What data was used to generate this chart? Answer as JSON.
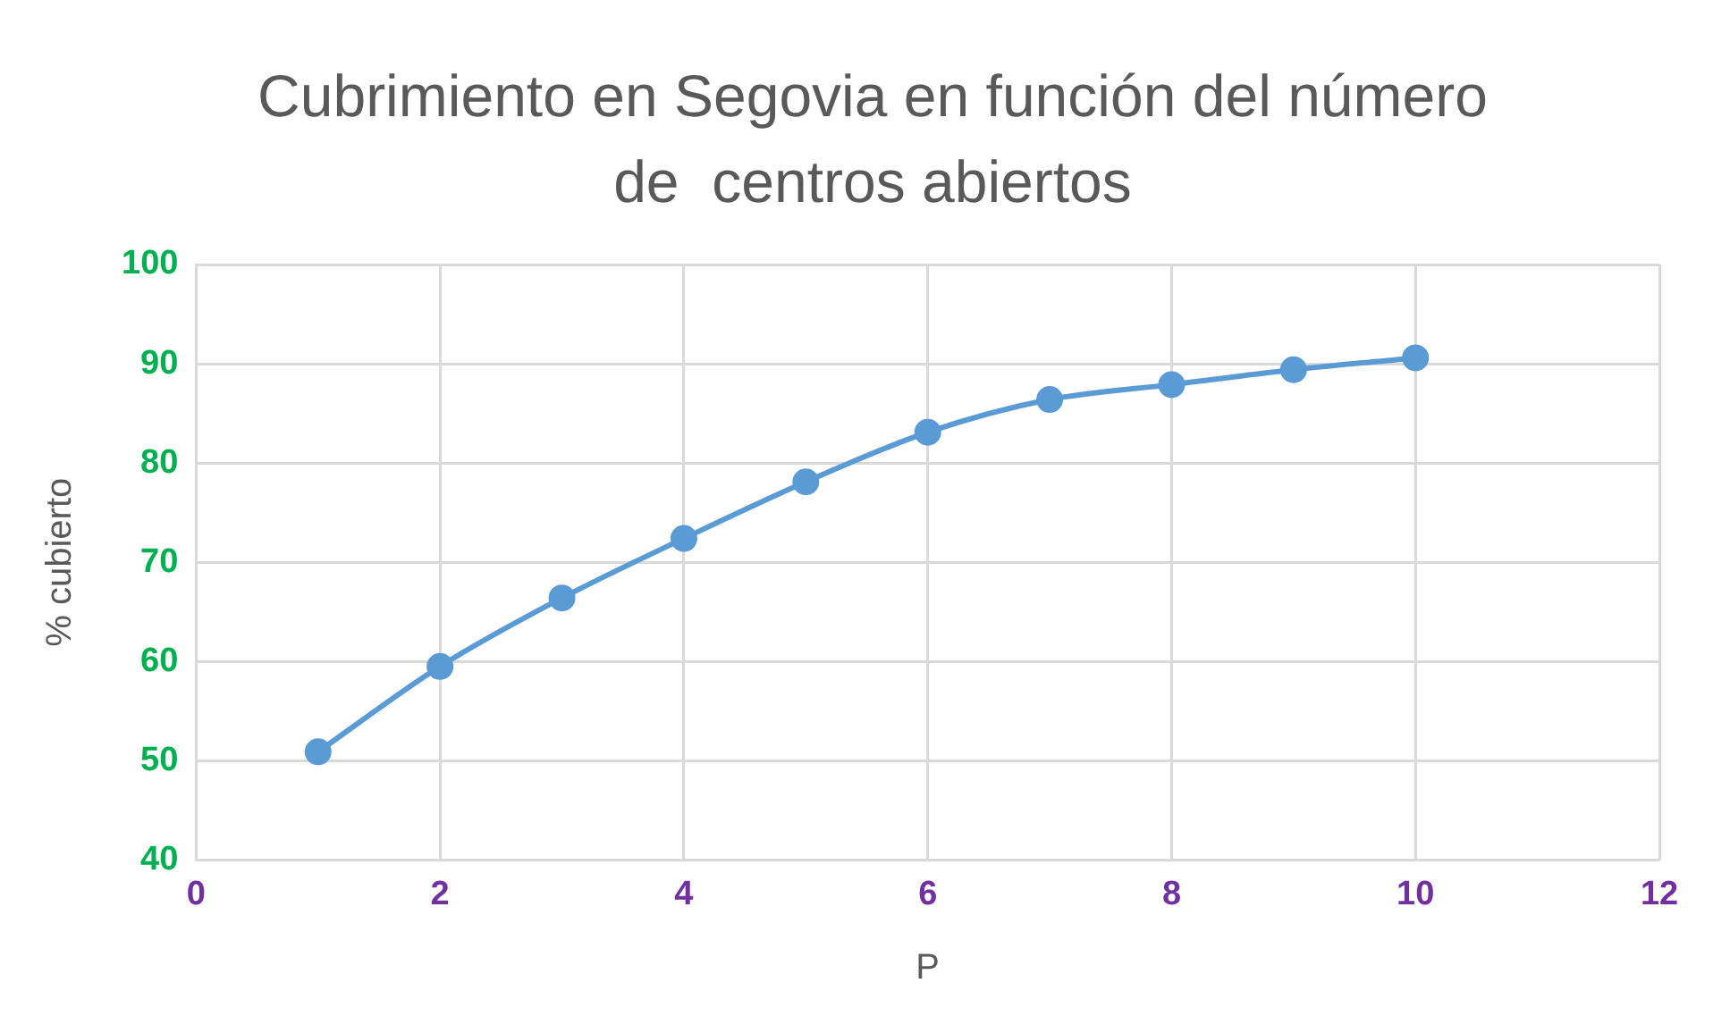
{
  "chart_data": {
    "type": "line",
    "title": "Cubrimiento en Segovia en función del número de  centros abiertos",
    "xlabel": "P",
    "ylabel": "% cubierto",
    "x": [
      1,
      2,
      3,
      4,
      5,
      6,
      7,
      8,
      9,
      10
    ],
    "series": [
      {
        "color": "#5b9bd5",
        "values": [
          50.9,
          59.5,
          66.4,
          72.4,
          78.1,
          83.1,
          86.4,
          87.9,
          89.4,
          90.6
        ]
      }
    ],
    "xlim": [
      0,
      12
    ],
    "xticks": [
      0,
      2,
      4,
      6,
      8,
      10,
      12
    ],
    "ylim": [
      40,
      100
    ],
    "yticks": [
      40,
      50,
      60,
      70,
      80,
      90,
      100
    ],
    "grid": true,
    "legend": false,
    "marker": "circle",
    "line_style": "solid"
  }
}
